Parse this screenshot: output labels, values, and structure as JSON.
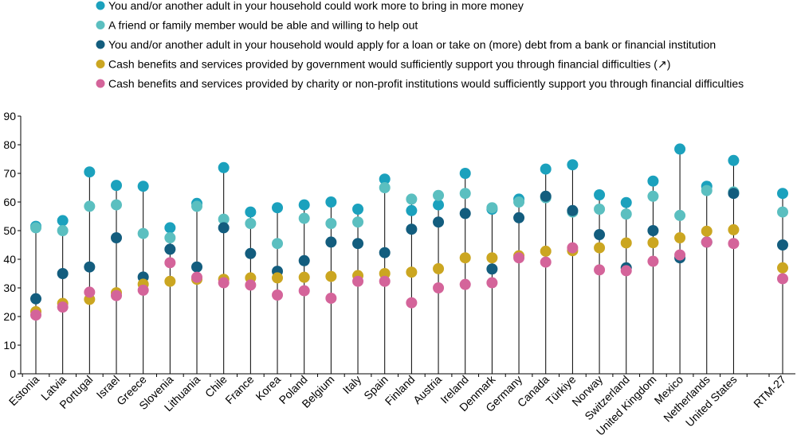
{
  "chart_data": {
    "type": "scatter",
    "categories": [
      "Estonia",
      "Latvia",
      "Portugal",
      "Israel",
      "Greece",
      "Slovenia",
      "Lithuania",
      "Chile",
      "France",
      "Korea",
      "Poland",
      "Belgium",
      "Italy",
      "Spain",
      "Finland",
      "Austria",
      "Ireland",
      "Denmark",
      "Germany",
      "Canada",
      "Türkiye",
      "Norway",
      "Switzerland",
      "United Kingdom",
      "Mexico",
      "Netherlands",
      "United States",
      "RTM-27"
    ],
    "ylim": [
      0,
      90
    ],
    "yticks": [
      0,
      10,
      20,
      30,
      40,
      50,
      60,
      70,
      80,
      90
    ],
    "grid": false,
    "legend_position": "top-left",
    "series": [
      {
        "name": "You and/or another adult in your household could work more to bring in more money",
        "color": "#1ba1bd",
        "values": [
          51.5,
          53.5,
          70.5,
          65.8,
          65.5,
          51,
          59.5,
          72,
          56.5,
          58,
          59,
          60,
          57.5,
          68,
          57,
          59,
          70,
          57.5,
          61,
          71.5,
          73,
          62.5,
          59.8,
          67.3,
          78.5,
          65.5,
          74.5,
          63
        ]
      },
      {
        "name": "A friend or family member would be able and willing to help out",
        "color": "#5bbfc0",
        "values": [
          51,
          50,
          58.5,
          59,
          49,
          47.5,
          58.5,
          54,
          52.5,
          45.5,
          54.3,
          52.5,
          53,
          65,
          61,
          62.3,
          63,
          58,
          60,
          61.5,
          56.5,
          57.5,
          55.8,
          62,
          55.3,
          64,
          63.5,
          56.5
        ]
      },
      {
        "name": "You and/or another adult in your household would apply for a loan or take on (more) debt from a bank or financial institution",
        "color": "#135d7e",
        "values": [
          26.2,
          35,
          37.3,
          47.5,
          33.8,
          43.5,
          37.3,
          51,
          42,
          35.8,
          39.5,
          46,
          45.5,
          42.3,
          50.5,
          53,
          56,
          36.6,
          54.5,
          62,
          57,
          48.6,
          37,
          50,
          40.5,
          46,
          63,
          45
        ]
      },
      {
        "name": "Cash benefits and services provided by government would sufficiently support you through financial difficulties (↗)",
        "color": "#cba621",
        "values": [
          21.7,
          24.6,
          26,
          28.3,
          31.3,
          32.3,
          33,
          33,
          33.5,
          33.5,
          33.7,
          34,
          34.3,
          35,
          35.5,
          36.7,
          40.5,
          40.5,
          41.2,
          42.8,
          43,
          44,
          45.7,
          45.8,
          47.5,
          49.8,
          50.3,
          37
        ]
      },
      {
        "name": "Cash benefits and services provided by charity or non-profit institutions would sufficiently support you through financial difficulties",
        "color": "#d4649a",
        "values": [
          20.5,
          23.3,
          28.5,
          27.3,
          29.2,
          38.8,
          33.7,
          31.8,
          31,
          27.5,
          29,
          26.4,
          32.3,
          32.3,
          24.8,
          30,
          31.2,
          31.8,
          40.5,
          39,
          44,
          36.3,
          36,
          39.3,
          41.5,
          46,
          45.5,
          33.2
        ]
      }
    ]
  }
}
